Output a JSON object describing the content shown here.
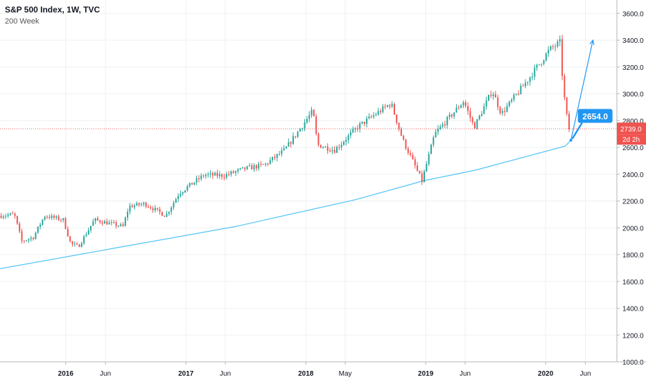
{
  "legend": {
    "title": "S&P 500 Index, 1W, TVC",
    "indicator": "200 Week"
  },
  "price_badge": {
    "value": "2739.0",
    "countdown": "2d 2h",
    "color": "#ef5350"
  },
  "callout": {
    "label": "2654.0",
    "color": "#2196f3"
  },
  "colors": {
    "up": "#26a69a",
    "down": "#ef5350",
    "ma": "#4fc3f7",
    "grid": "#eef0f3",
    "axis_text": "#131722",
    "projection": "#2196f3"
  },
  "chart_data": {
    "type": "candlestick",
    "title": "S&P 500 Index, 1W, TVC",
    "xlabel": "",
    "ylabel": "",
    "ylim": [
      1000,
      3700
    ],
    "yticks": [
      1000,
      1200,
      1400,
      1600,
      1800,
      2000,
      2200,
      2400,
      2600,
      2800,
      3000,
      3200,
      3400,
      3600
    ],
    "ytick_labels": [
      "1000.0",
      "1200.0",
      "1400.0",
      "1600.0",
      "1800.0",
      "2000.0",
      "2200.0",
      "2400.0",
      "2600.0",
      "2800.0",
      "3000.0",
      "3200.0",
      "3400.0",
      "3600.0"
    ],
    "xlim": [
      "2015-06-15",
      "2020-08-05"
    ],
    "xticks": [
      {
        "date": "2016-01-01",
        "label": "2016",
        "bold": true
      },
      {
        "date": "2016-05-01",
        "label": "Jun",
        "bold": false
      },
      {
        "date": "2017-01-01",
        "label": "2017",
        "bold": true
      },
      {
        "date": "2017-05-01",
        "label": "Jun",
        "bold": false
      },
      {
        "date": "2018-01-01",
        "label": "2018",
        "bold": true
      },
      {
        "date": "2018-05-01",
        "label": "May",
        "bold": false
      },
      {
        "date": "2019-01-01",
        "label": "2019",
        "bold": true
      },
      {
        "date": "2019-05-01",
        "label": "Jun",
        "bold": false
      },
      {
        "date": "2020-01-01",
        "label": "2020",
        "bold": true
      },
      {
        "date": "2020-05-01",
        "label": "Jun",
        "bold": false
      }
    ],
    "grid": true,
    "last_price": 2739,
    "series_points": [
      [
        "2015-06-15",
        2090
      ],
      [
        "2015-08-01",
        2100
      ],
      [
        "2015-08-24",
        1900
      ],
      [
        "2015-09-28",
        1930
      ],
      [
        "2015-11-01",
        2090
      ],
      [
        "2015-12-28",
        2060
      ],
      [
        "2016-01-20",
        1880
      ],
      [
        "2016-02-12",
        1860
      ],
      [
        "2016-04-01",
        2060
      ],
      [
        "2016-06-27",
        2010
      ],
      [
        "2016-07-15",
        2160
      ],
      [
        "2016-09-01",
        2180
      ],
      [
        "2016-11-04",
        2090
      ],
      [
        "2016-12-15",
        2260
      ],
      [
        "2017-03-01",
        2395
      ],
      [
        "2017-05-01",
        2390
      ],
      [
        "2017-07-01",
        2440
      ],
      [
        "2017-09-01",
        2470
      ],
      [
        "2017-11-01",
        2580
      ],
      [
        "2018-01-26",
        2873
      ],
      [
        "2018-02-09",
        2620
      ],
      [
        "2018-04-02",
        2580
      ],
      [
        "2018-06-15",
        2760
      ],
      [
        "2018-09-21",
        2930
      ],
      [
        "2018-10-26",
        2660
      ],
      [
        "2018-12-24",
        2350
      ],
      [
        "2019-02-01",
        2700
      ],
      [
        "2019-04-30",
        2945
      ],
      [
        "2019-06-01",
        2750
      ],
      [
        "2019-07-26",
        3025
      ],
      [
        "2019-08-23",
        2850
      ],
      [
        "2019-11-01",
        3070
      ],
      [
        "2020-01-17",
        3330
      ],
      [
        "2020-02-19",
        3386
      ],
      [
        "2020-02-28",
        2954
      ],
      [
        "2020-03-06",
        2972
      ],
      [
        "2020-03-11",
        2739
      ]
    ],
    "moving_average": {
      "name": "200 Week",
      "points": [
        [
          "2015-06-15",
          1695
        ],
        [
          "2016-06-01",
          1850
        ],
        [
          "2017-06-01",
          2010
        ],
        [
          "2018-06-01",
          2210
        ],
        [
          "2019-01-01",
          2355
        ],
        [
          "2019-06-01",
          2430
        ],
        [
          "2020-03-01",
          2610
        ],
        [
          "2020-03-18",
          2654
        ]
      ]
    },
    "projection": {
      "from": [
        "2020-03-18",
        2654
      ],
      "to": [
        "2020-05-24",
        3400
      ]
    },
    "annotations": [
      {
        "text": "2654.0",
        "date": "2020-03-18",
        "value": 2654
      }
    ]
  }
}
